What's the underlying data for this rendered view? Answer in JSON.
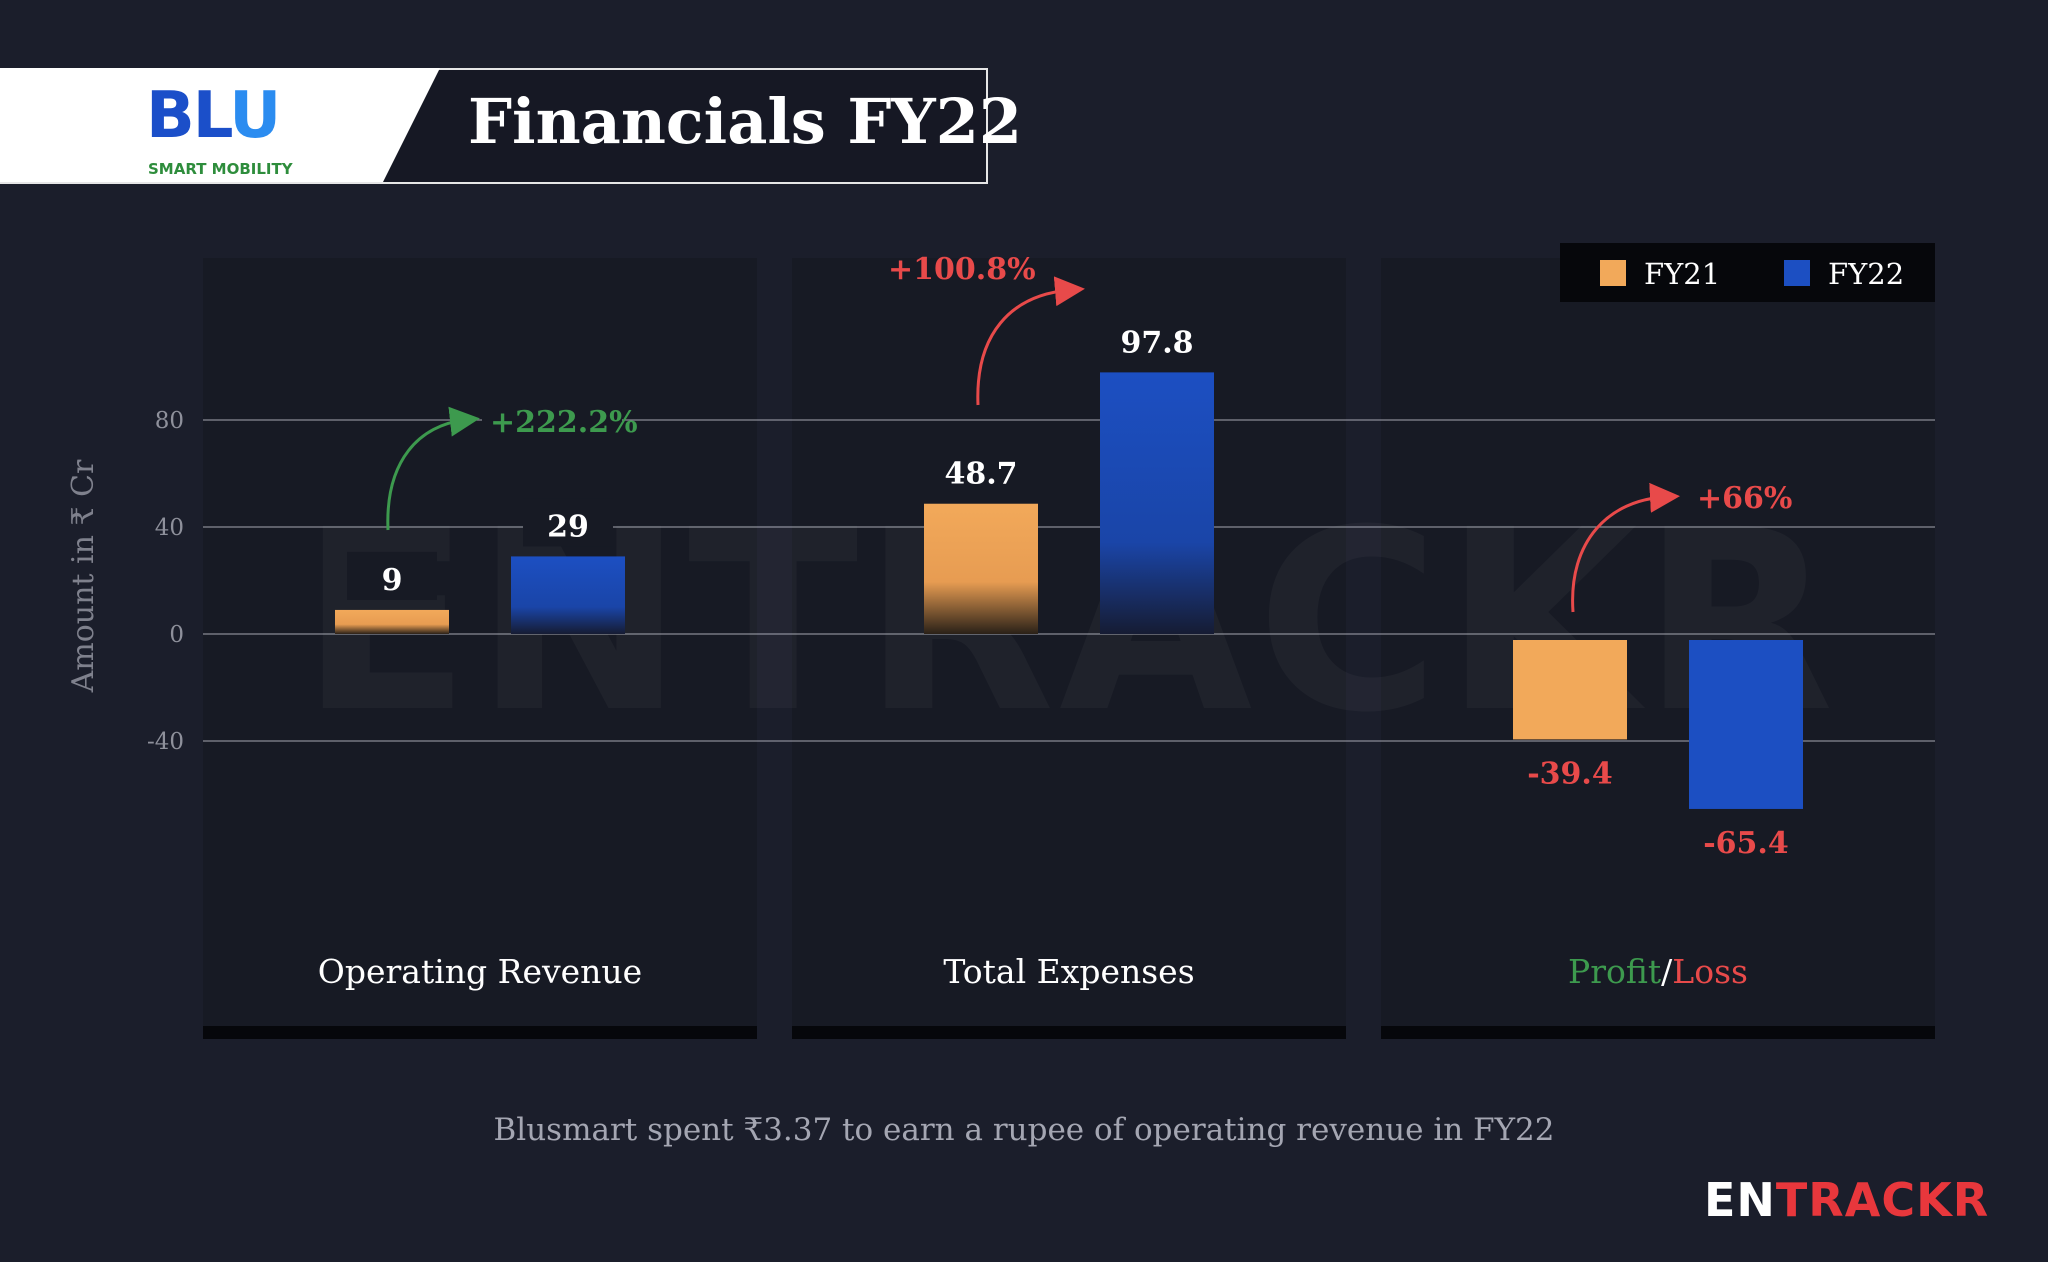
{
  "header": {
    "logo_main": "BLU",
    "logo_sub": "SMART MOBILITY",
    "title": "Financials FY22"
  },
  "colors": {
    "fy21": "#f2a95a",
    "fy22": "#1c4fc2",
    "positive": "#3d9a4e",
    "negative": "#e84a4a",
    "background": "#1b1e2b"
  },
  "chart_data": {
    "type": "bar",
    "ylabel": "Amount in ₹ Cr",
    "ylim": [
      -80,
      100
    ],
    "yticks": [
      80,
      40,
      0,
      -40
    ],
    "grid": true,
    "legend_position": "top-right",
    "categories": [
      "Operating Revenue",
      "Total Expenses",
      "Profit/Loss"
    ],
    "series": [
      {
        "name": "FY21",
        "values": [
          9,
          48.7,
          -39.4
        ]
      },
      {
        "name": "FY22",
        "values": [
          29,
          97.8,
          -65.4
        ]
      }
    ],
    "data_labels": {
      "FY21": [
        "9",
        "48.7",
        "-39.4"
      ],
      "FY22": [
        "29",
        "97.8",
        "-65.4"
      ]
    },
    "growth_annotations": [
      "+222.2%",
      "+100.8%",
      "+66%"
    ],
    "category_label_parts": {
      "profit": "Profit",
      "slash": "/",
      "loss": "Loss"
    }
  },
  "footnote": "Blusmart spent ₹3.37 to earn a rupee of operating revenue in FY22",
  "brand": {
    "en": "EN",
    "rest": "TRACKR"
  },
  "watermark": "ENTRACKR"
}
